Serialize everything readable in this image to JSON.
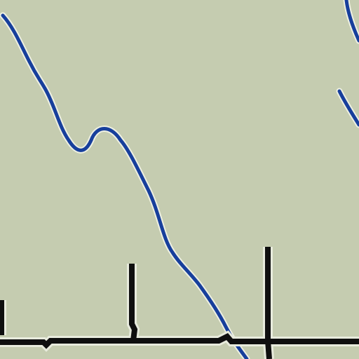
{
  "map": {
    "colors": {
      "land": "#c5ccb0",
      "river": "#173f9c",
      "river_halo": "#eef0e2",
      "road": "#0f0f0f",
      "road_halo": "#e8ebdd"
    },
    "features": {
      "river": "river-line",
      "road": "road-line"
    }
  }
}
